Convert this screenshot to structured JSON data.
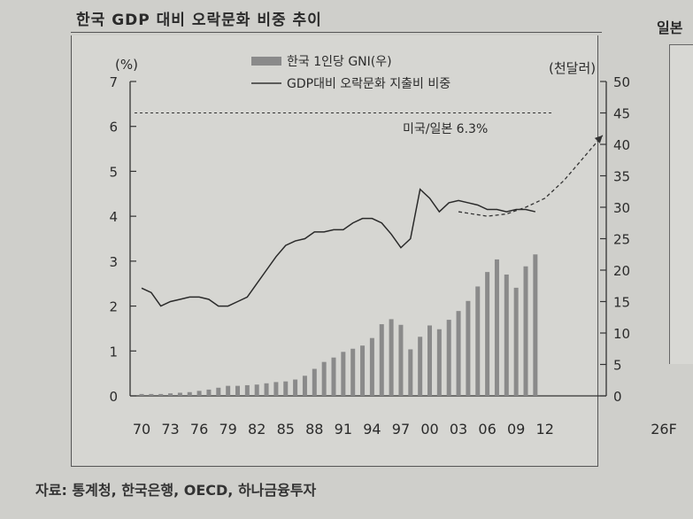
{
  "title": "한국 GDP 대비 오락문화 비중 추이",
  "side_title": "일본",
  "source": "자료: 통계청, 한국은행, OECD, 하나금융투자",
  "chart_data": {
    "type": "bar+line",
    "left_unit": "(%)",
    "right_unit": "(천달러)",
    "left_ticks": [
      "0",
      "1",
      "2",
      "3",
      "4",
      "5",
      "6",
      "7"
    ],
    "right_ticks": [
      "0",
      "5",
      "10",
      "15",
      "20",
      "25",
      "30",
      "35",
      "40",
      "45",
      "50"
    ],
    "x_ticks": [
      "70",
      "73",
      "76",
      "79",
      "82",
      "85",
      "88",
      "91",
      "94",
      "97",
      "00",
      "03",
      "06",
      "09",
      "12",
      "26F"
    ],
    "ylim_left": [
      0,
      7
    ],
    "ylim_right": [
      0,
      50
    ],
    "legend": {
      "bars": "한국 1인당 GNI(우)",
      "line": "GDP대비 오락문화 지출비 비중"
    },
    "reference_line": {
      "label": "미국/일본 6.3%",
      "value": 6.3
    },
    "years": [
      1970,
      1971,
      1972,
      1973,
      1974,
      1975,
      1976,
      1977,
      1978,
      1979,
      1980,
      1981,
      1982,
      1983,
      1984,
      1985,
      1986,
      1987,
      1988,
      1989,
      1990,
      1991,
      1992,
      1993,
      1994,
      1995,
      1996,
      1997,
      1998,
      1999,
      2000,
      2001,
      2002,
      2003,
      2004,
      2005,
      2006,
      2007,
      2008,
      2009,
      2010,
      2011
    ],
    "gni": [
      0.3,
      0.3,
      0.3,
      0.4,
      0.5,
      0.6,
      0.8,
      1.0,
      1.3,
      1.6,
      1.6,
      1.7,
      1.8,
      2.0,
      2.2,
      2.3,
      2.6,
      3.2,
      4.3,
      5.4,
      6.1,
      7.0,
      7.5,
      8.0,
      9.2,
      11.4,
      12.2,
      11.3,
      7.4,
      9.4,
      11.2,
      10.6,
      12.1,
      13.5,
      15.1,
      17.4,
      19.7,
      21.7,
      19.3,
      17.2,
      20.6,
      22.5
    ],
    "line_values": [
      2.4,
      2.3,
      2.0,
      2.1,
      2.15,
      2.2,
      2.2,
      2.15,
      2.0,
      2.0,
      2.1,
      2.2,
      2.5,
      2.8,
      3.1,
      3.35,
      3.45,
      3.5,
      3.65,
      3.65,
      3.7,
      3.7,
      3.85,
      3.95,
      3.95,
      3.85,
      3.6,
      3.3,
      3.5,
      4.6,
      4.4,
      4.1,
      4.3,
      4.35,
      4.3,
      4.25,
      4.15,
      4.15,
      4.1,
      4.15,
      4.15,
      4.1
    ],
    "forecast_lower": [
      [
        2003,
        4.1
      ],
      [
        2006,
        4.0
      ],
      [
        2008,
        4.05
      ],
      [
        2010,
        4.2
      ],
      [
        2012,
        4.4
      ],
      [
        2014,
        4.8
      ],
      [
        2016,
        5.3
      ],
      [
        2018,
        5.8
      ]
    ],
    "forecast_upper": [
      [
        2011,
        28.5
      ],
      [
        2013,
        33.0
      ],
      [
        2015,
        37.0
      ],
      [
        2017,
        42.0
      ]
    ]
  }
}
